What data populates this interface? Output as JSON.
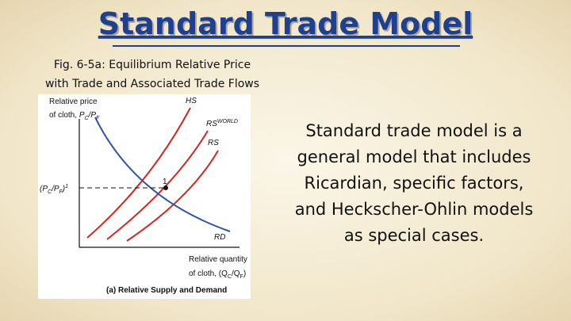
{
  "title": "Standard Trade Model",
  "figure": {
    "caption": [
      "Fig. 6-5a: Equilibrium Relative Price",
      "with Trade and Associated Trade Flows"
    ],
    "y_label": {
      "line1": "Relative price",
      "line2_parts": [
        "of cloth, ",
        "P",
        "C",
        "/P",
        "F"
      ]
    },
    "curves": {
      "hs": "HS",
      "rs_world": "RS",
      "rs_world_sup": "WORLD",
      "rs": "RS",
      "rd": "RD"
    },
    "price_label_parts": [
      "(P",
      "C",
      "/P",
      "F",
      ")",
      "1"
    ],
    "point": "1",
    "x_label": {
      "line1": "Relative quantity",
      "line2_parts": [
        "of cloth, (Q",
        "C",
        "/Q",
        "F",
        ")"
      ]
    },
    "panel": "(a) Relative Supply and Demand"
  },
  "body": {
    "lines": [
      "Standard trade model is a",
      "general model that includes",
      "Ricardian, specific factors,",
      "and Heckscher-Ohlin models",
      "as special cases."
    ]
  }
}
